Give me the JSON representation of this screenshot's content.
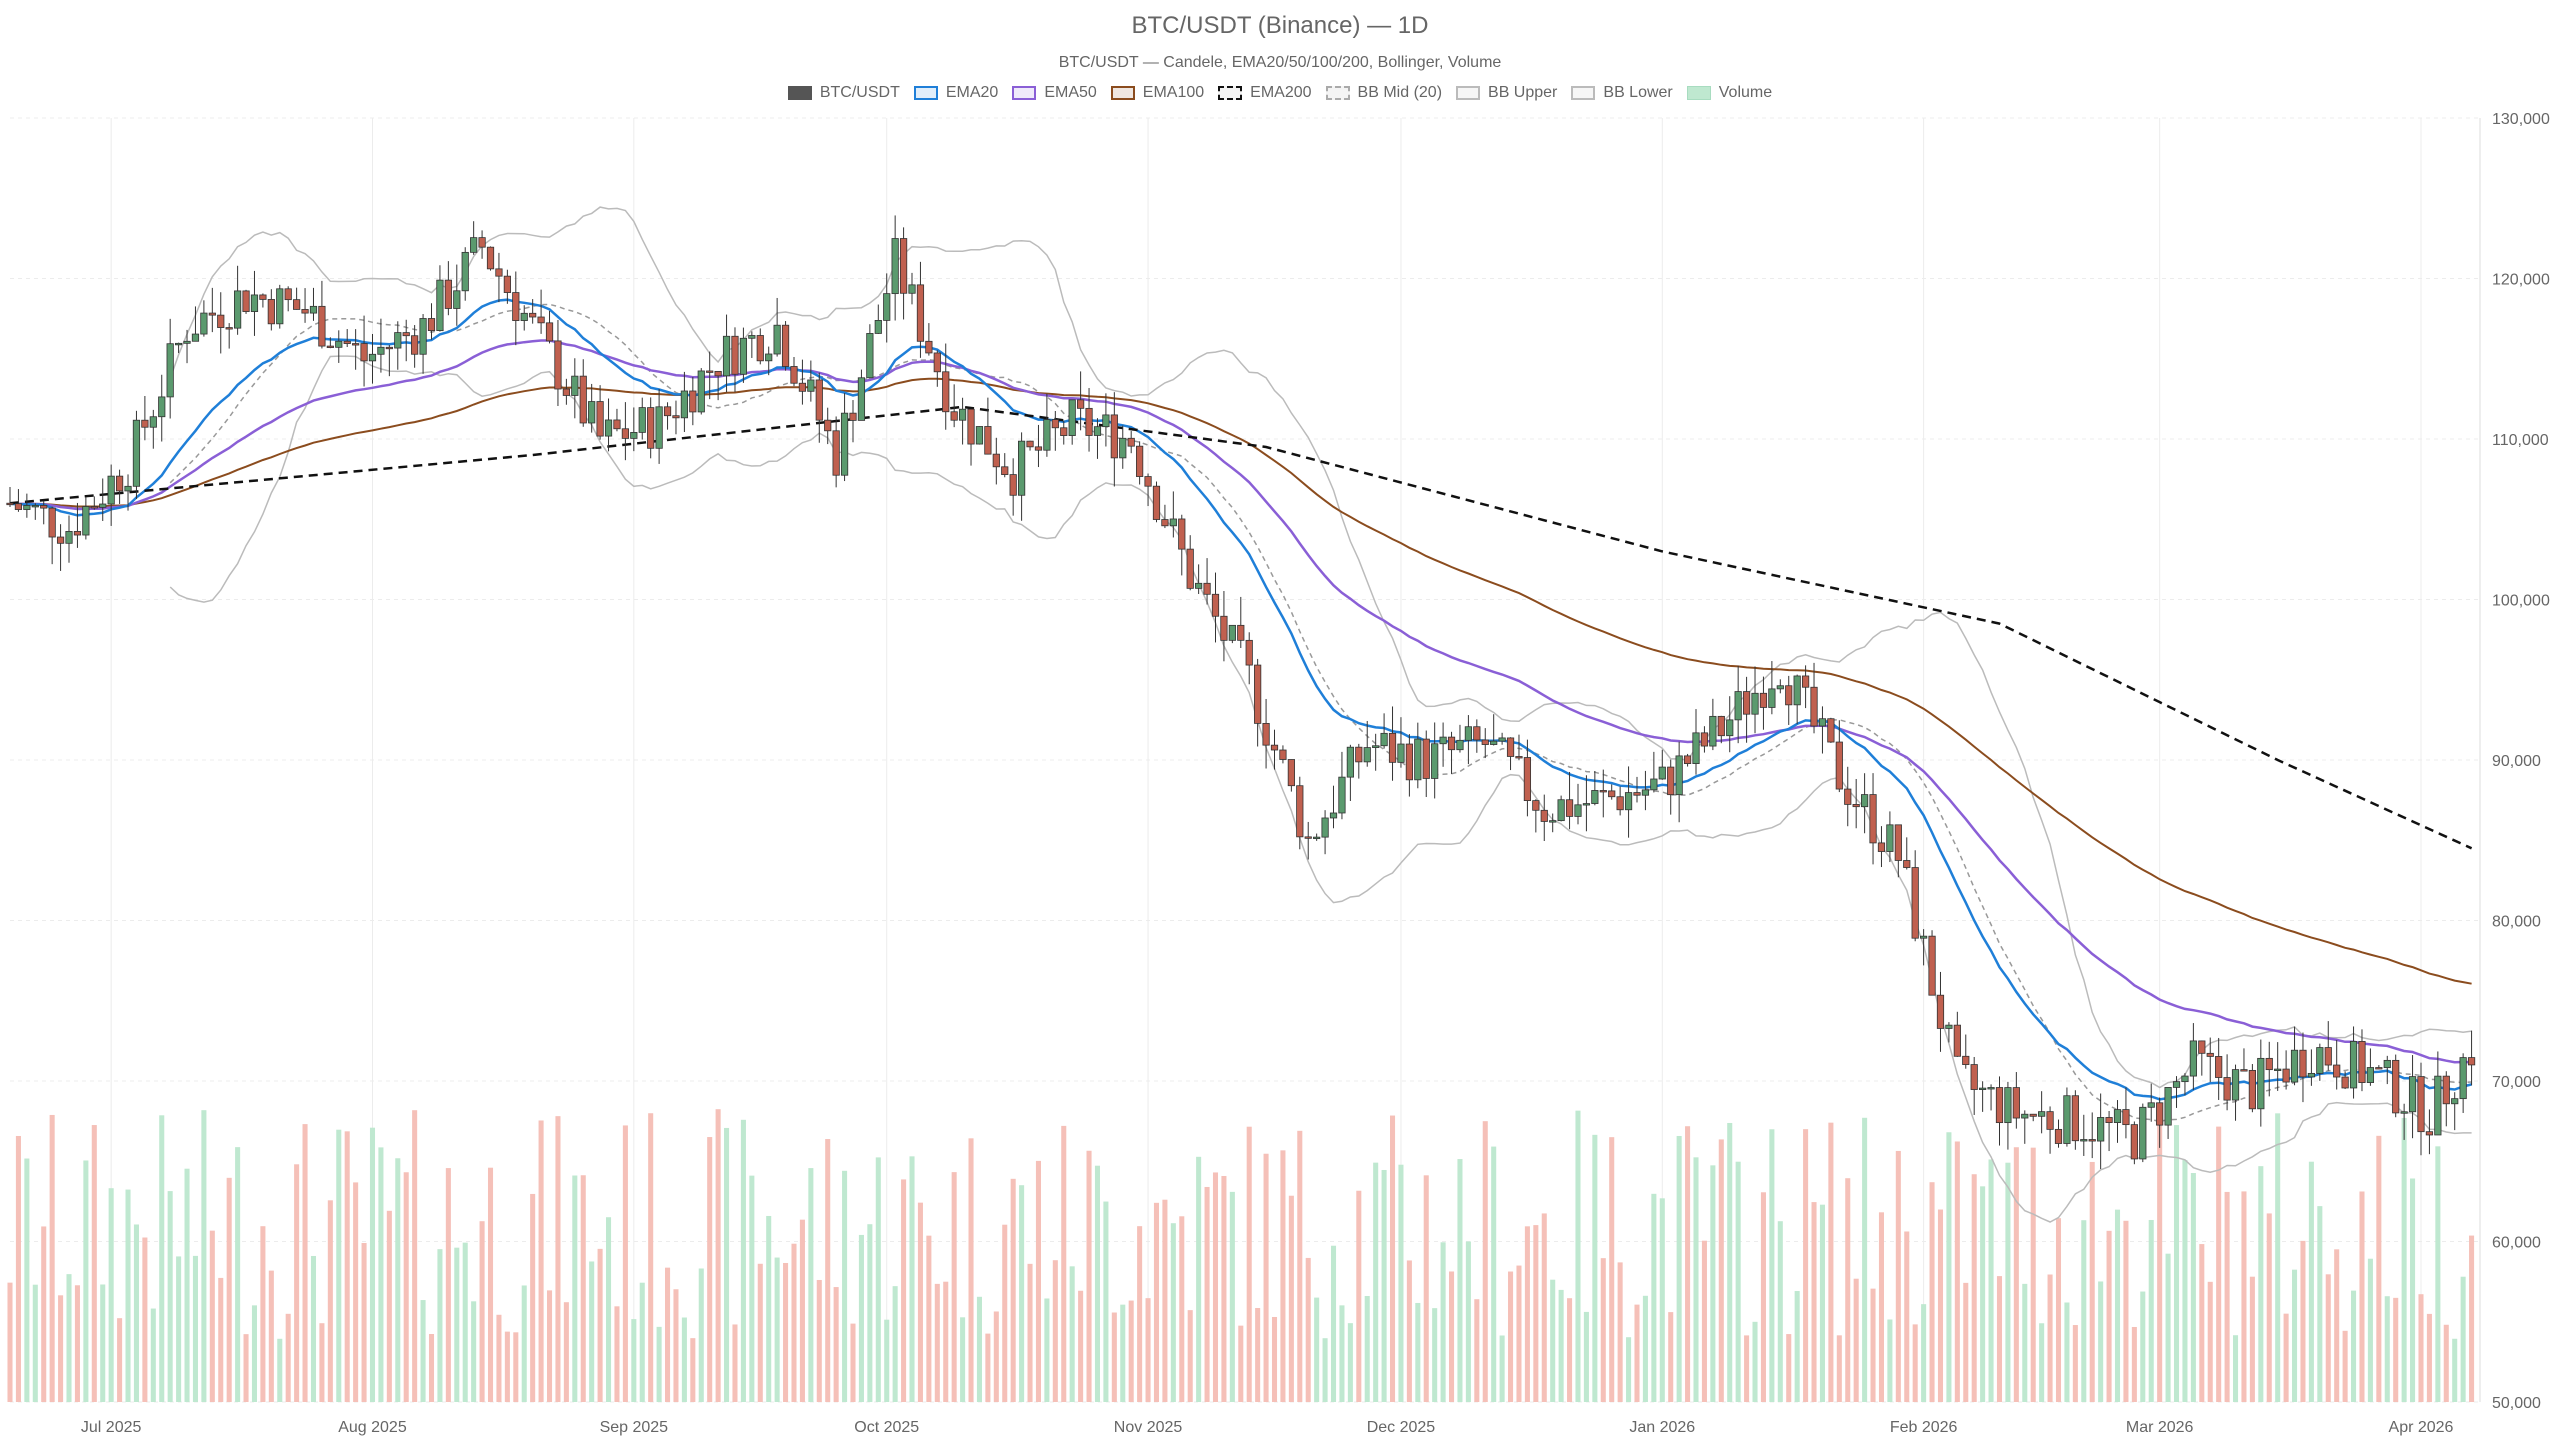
{
  "chart_data": {
    "type": "candlestick",
    "title": "BTC/USDT (Binance) — 1D",
    "subtitle": "BTC/USDT — Candele, EMA20/50/100/200, Bollinger, Volume",
    "ylim": [
      50000,
      130000
    ],
    "y_ticks": [
      "50,000",
      "60,000",
      "70,000",
      "80,000",
      "90,000",
      "100,000",
      "110,000",
      "120,000",
      "130,000"
    ],
    "x_ticks": [
      "Jul 2025",
      "Aug 2025",
      "Sep 2025",
      "Oct 2025",
      "Nov 2025",
      "Dec 2025",
      "Jan 2026",
      "Feb 2026",
      "Mar 2026",
      "Apr 2026"
    ],
    "grid": true,
    "legend_position": "top-center",
    "colors": {
      "up": "#5b9a6e",
      "down": "#c0604f",
      "ema20": "#1f7fd8",
      "ema50": "#8a5fd6",
      "ema100": "#8b4c1e",
      "ema200": "#111111",
      "bb": "#bbbbbb",
      "vol_up": "#bfe8d0",
      "vol_down": "#f5c0b8"
    },
    "legend": [
      {
        "label": "BTC/USDT",
        "color": "#555555",
        "style": "solid-fill"
      },
      {
        "label": "EMA20",
        "color": "#1f7fd8",
        "style": "line"
      },
      {
        "label": "EMA50",
        "color": "#8a5fd6",
        "style": "line"
      },
      {
        "label": "EMA100",
        "color": "#8b4c1e",
        "style": "line"
      },
      {
        "label": "EMA200",
        "color": "#111111",
        "style": "dashed"
      },
      {
        "label": "BB Mid (20)",
        "color": "#aaaaaa",
        "style": "dashed"
      },
      {
        "label": "BB Upper",
        "color": "#bbbbbb",
        "style": "line"
      },
      {
        "label": "BB Lower",
        "color": "#bbbbbb",
        "style": "line"
      },
      {
        "label": "Volume",
        "color": "#bfe8d0",
        "style": "fill"
      }
    ],
    "candles_weekly_close": [
      {
        "date": "2025-06-19",
        "close": 106000
      },
      {
        "date": "2025-06-26",
        "close": 104500
      },
      {
        "date": "2025-07-03",
        "close": 108500
      },
      {
        "date": "2025-07-10",
        "close": 117000
      },
      {
        "date": "2025-07-17",
        "close": 119000
      },
      {
        "date": "2025-07-24",
        "close": 118000
      },
      {
        "date": "2025-07-31",
        "close": 115000
      },
      {
        "date": "2025-08-07",
        "close": 117000
      },
      {
        "date": "2025-08-14",
        "close": 122000
      },
      {
        "date": "2025-08-21",
        "close": 116000
      },
      {
        "date": "2025-08-28",
        "close": 110000
      },
      {
        "date": "2025-09-04",
        "close": 111000
      },
      {
        "date": "2025-09-11",
        "close": 115000
      },
      {
        "date": "2025-09-18",
        "close": 117000
      },
      {
        "date": "2025-09-25",
        "close": 109000
      },
      {
        "date": "2025-10-02",
        "close": 121000
      },
      {
        "date": "2025-10-09",
        "close": 112000
      },
      {
        "date": "2025-10-16",
        "close": 108000
      },
      {
        "date": "2025-10-23",
        "close": 111000
      },
      {
        "date": "2025-10-30",
        "close": 110000
      },
      {
        "date": "2025-11-06",
        "close": 101500
      },
      {
        "date": "2025-11-13",
        "close": 95000
      },
      {
        "date": "2025-11-20",
        "close": 85000
      },
      {
        "date": "2025-11-27",
        "close": 91000
      },
      {
        "date": "2025-12-04",
        "close": 90000
      },
      {
        "date": "2025-12-11",
        "close": 91000
      },
      {
        "date": "2025-12-18",
        "close": 87000
      },
      {
        "date": "2025-12-25",
        "close": 87500
      },
      {
        "date": "2026-01-01",
        "close": 88500
      },
      {
        "date": "2026-01-08",
        "close": 92000
      },
      {
        "date": "2026-01-15",
        "close": 96000
      },
      {
        "date": "2026-01-22",
        "close": 89000
      },
      {
        "date": "2026-01-29",
        "close": 84000
      },
      {
        "date": "2026-02-05",
        "close": 70000
      },
      {
        "date": "2026-02-12",
        "close": 68000
      },
      {
        "date": "2026-02-19",
        "close": 67500
      },
      {
        "date": "2026-02-26",
        "close": 66500
      },
      {
        "date": "2026-03-05",
        "close": 71000
      },
      {
        "date": "2026-03-12",
        "close": 69500
      },
      {
        "date": "2026-03-19",
        "close": 72000
      },
      {
        "date": "2026-03-26",
        "close": 70500
      },
      {
        "date": "2026-04-02",
        "close": 68000
      },
      {
        "date": "2026-04-07",
        "close": 72000
      }
    ],
    "ema200_approx": [
      {
        "date": "2025-06-19",
        "value": 106000
      },
      {
        "date": "2025-08-20",
        "value": 109000
      },
      {
        "date": "2025-10-10",
        "value": 112000
      },
      {
        "date": "2025-11-15",
        "value": 109500
      },
      {
        "date": "2026-01-01",
        "value": 103000
      },
      {
        "date": "2026-02-10",
        "value": 98500
      },
      {
        "date": "2026-03-15",
        "value": 90000
      },
      {
        "date": "2026-04-07",
        "value": 84500
      }
    ]
  }
}
